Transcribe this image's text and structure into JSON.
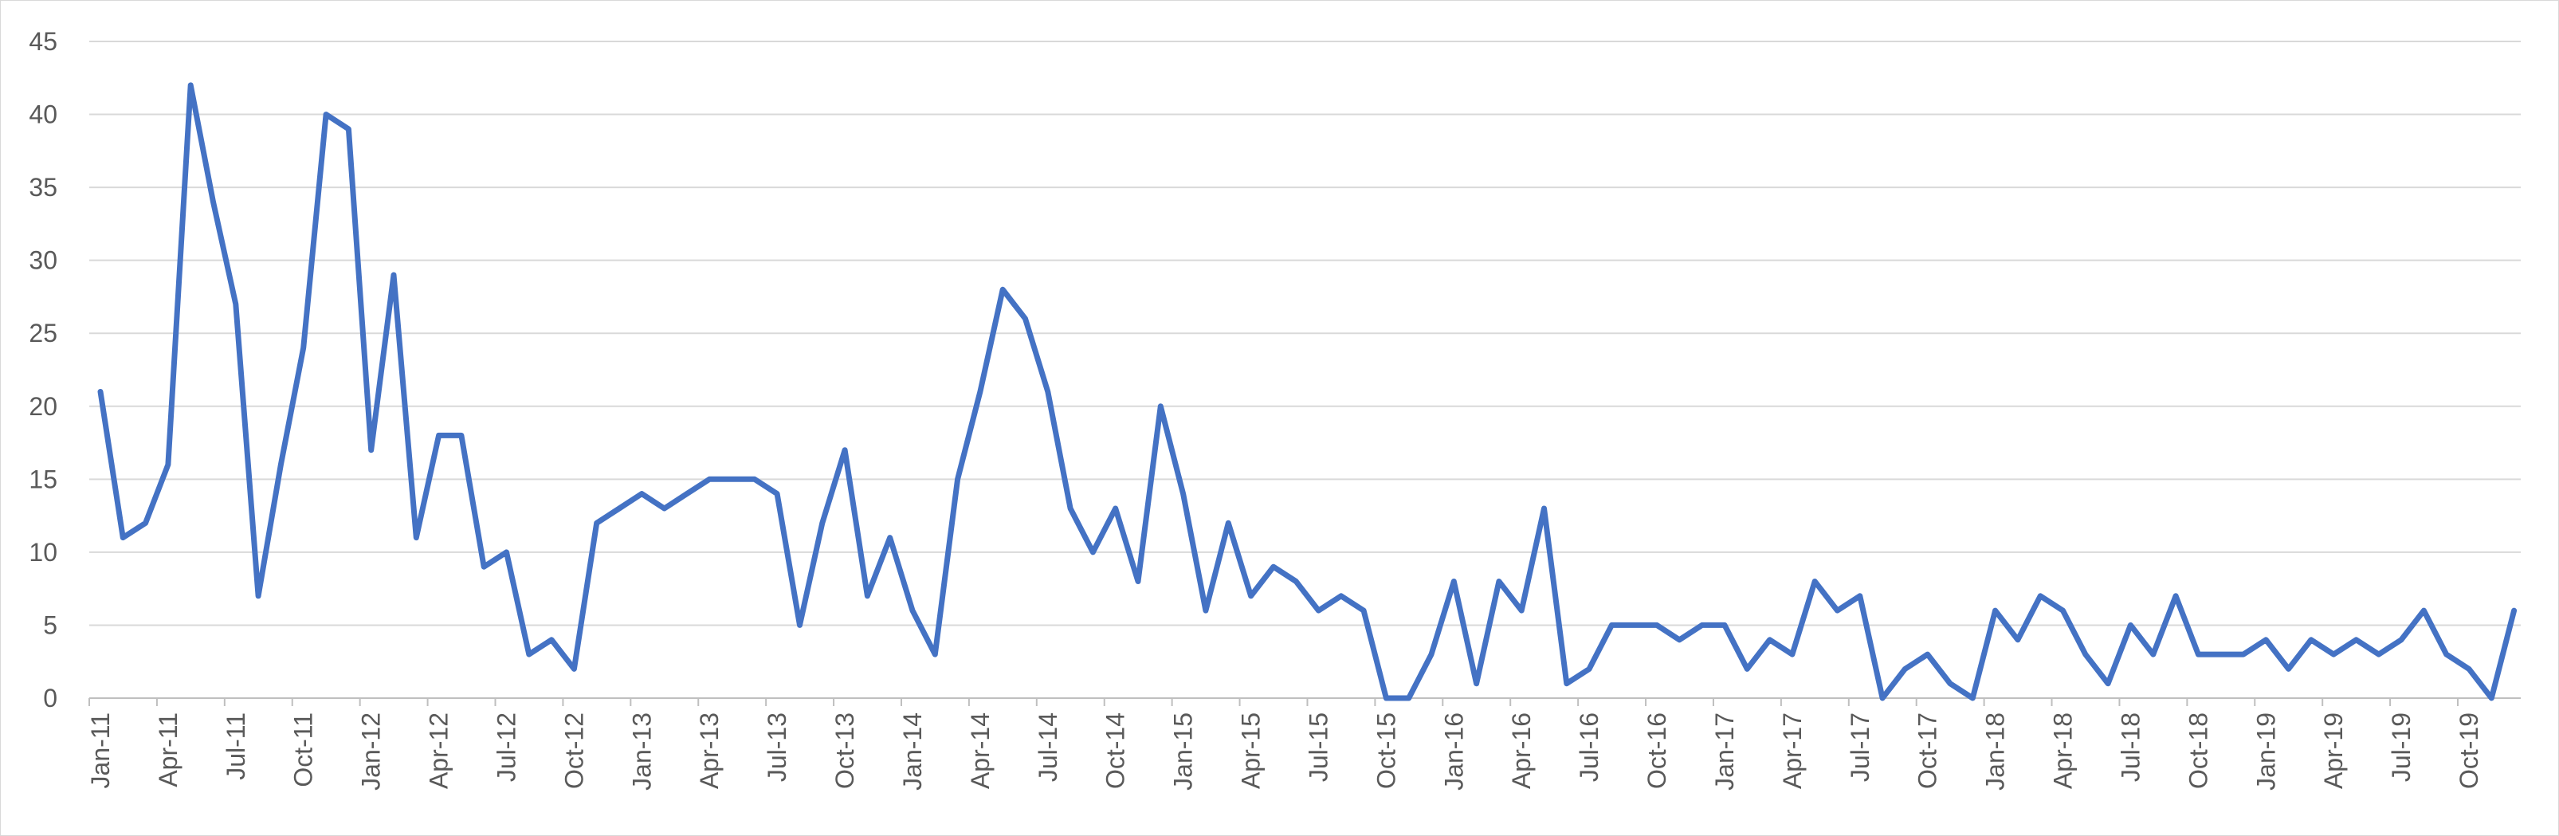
{
  "chart_data": {
    "type": "line",
    "title": "",
    "xlabel": "",
    "ylabel": "",
    "ylim": [
      0,
      45
    ],
    "y_ticks": [
      0,
      5,
      10,
      15,
      20,
      25,
      30,
      35,
      40,
      45
    ],
    "grid": "horizontal",
    "legend": "none",
    "line_color": "#4472c4",
    "x_tick_labels": [
      "Jan-11",
      "Apr-11",
      "Jul-11",
      "Oct-11",
      "Jan-12",
      "Apr-12",
      "Jul-12",
      "Oct-12",
      "Jan-13",
      "Apr-13",
      "Jul-13",
      "Oct-13",
      "Jan-14",
      "Apr-14",
      "Jul-14",
      "Oct-14",
      "Jan-15",
      "Apr-15",
      "Jul-15",
      "Oct-15",
      "Jan-16",
      "Apr-16",
      "Jul-16",
      "Oct-16",
      "Jan-17",
      "Apr-17",
      "Jul-17",
      "Oct-17",
      "Jan-18",
      "Apr-18",
      "Jul-18",
      "Oct-18",
      "Jan-19",
      "Apr-19",
      "Jul-19",
      "Oct-19"
    ],
    "x_start": "Jan-11",
    "x_end": "Dec-19",
    "values": [
      21,
      11,
      12,
      16,
      42,
      34,
      27,
      7,
      16,
      24,
      40,
      39,
      17,
      29,
      11,
      18,
      18,
      9,
      10,
      3,
      4,
      2,
      12,
      13,
      14,
      13,
      14,
      15,
      15,
      15,
      14,
      5,
      12,
      17,
      7,
      11,
      6,
      3,
      15,
      21,
      28,
      26,
      21,
      13,
      10,
      13,
      8,
      20,
      14,
      6,
      12,
      7,
      9,
      8,
      6,
      7,
      6,
      0,
      0,
      3,
      8,
      1,
      8,
      6,
      13,
      1,
      2,
      5,
      5,
      5,
      4,
      5,
      5,
      2,
      4,
      3,
      8,
      6,
      7,
      0,
      2,
      3,
      1,
      0,
      6,
      4,
      7,
      6,
      3,
      1,
      5,
      3,
      7,
      3,
      3,
      3,
      4,
      2,
      4,
      3,
      4,
      3,
      4,
      6,
      3,
      2,
      0,
      6
    ]
  }
}
